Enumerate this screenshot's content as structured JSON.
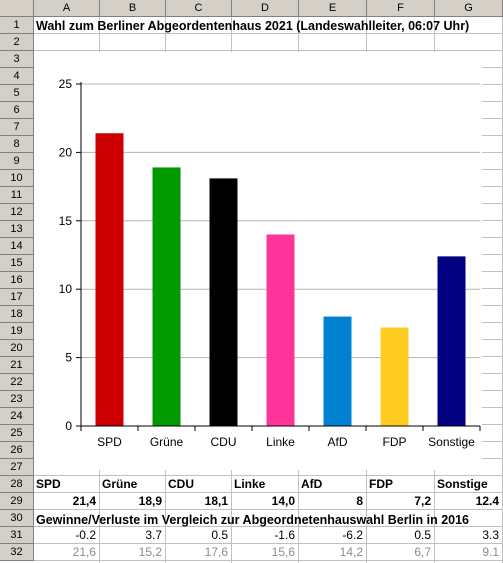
{
  "spreadsheet": {
    "columns": [
      "A",
      "B",
      "C",
      "D",
      "E",
      "F",
      "G"
    ],
    "rows": [
      "1",
      "2",
      "3",
      "4",
      "5",
      "6",
      "7",
      "8",
      "9",
      "10",
      "11",
      "12",
      "13",
      "14",
      "15",
      "16",
      "17",
      "18",
      "19",
      "20",
      "21",
      "22",
      "23",
      "24",
      "25",
      "26",
      "27",
      "28",
      "29",
      "30",
      "31",
      "32"
    ],
    "title": "Wahl zum Berliner Abgeordentenhaus 2021 (Landeswahlleiter, 06:07 Uhr)",
    "parties": [
      "SPD",
      "Grüne",
      "CDU",
      "Linke",
      "AfD",
      "FDP",
      "Sonstige"
    ],
    "results": [
      "21,4",
      "18,9",
      "18,1",
      "14,0",
      "8",
      "7,2",
      "12.4"
    ],
    "changes_label": "Gewinne/Verluste im Vergleich zur Abgeordnetenhauswahl Berlin in 2016",
    "changes": [
      "-0.2",
      "3.7",
      "0.5",
      "-1.6",
      "-6.2",
      "0.5",
      "3.3"
    ],
    "results_2016": [
      "21,6",
      "15,2",
      "17,6",
      "15,6",
      "14,2",
      "6,7",
      "9.1"
    ]
  },
  "chart_data": {
    "type": "bar",
    "categories": [
      "SPD",
      "Grüne",
      "CDU",
      "Linke",
      "AfD",
      "FDP",
      "Sonstige"
    ],
    "values": [
      21.4,
      18.9,
      18.1,
      14.0,
      8,
      7.2,
      12.4
    ],
    "colors": [
      "#cc0000",
      "#009900",
      "#000000",
      "#ff3399",
      "#0080d0",
      "#ffcc22",
      "#000080"
    ],
    "ylim": [
      0,
      25
    ],
    "yticks": [
      0,
      5,
      10,
      15,
      20,
      25
    ],
    "ytick_labels": [
      "0",
      "5",
      "10",
      "15",
      "20",
      "25"
    ],
    "grid": true,
    "legend": "none"
  }
}
